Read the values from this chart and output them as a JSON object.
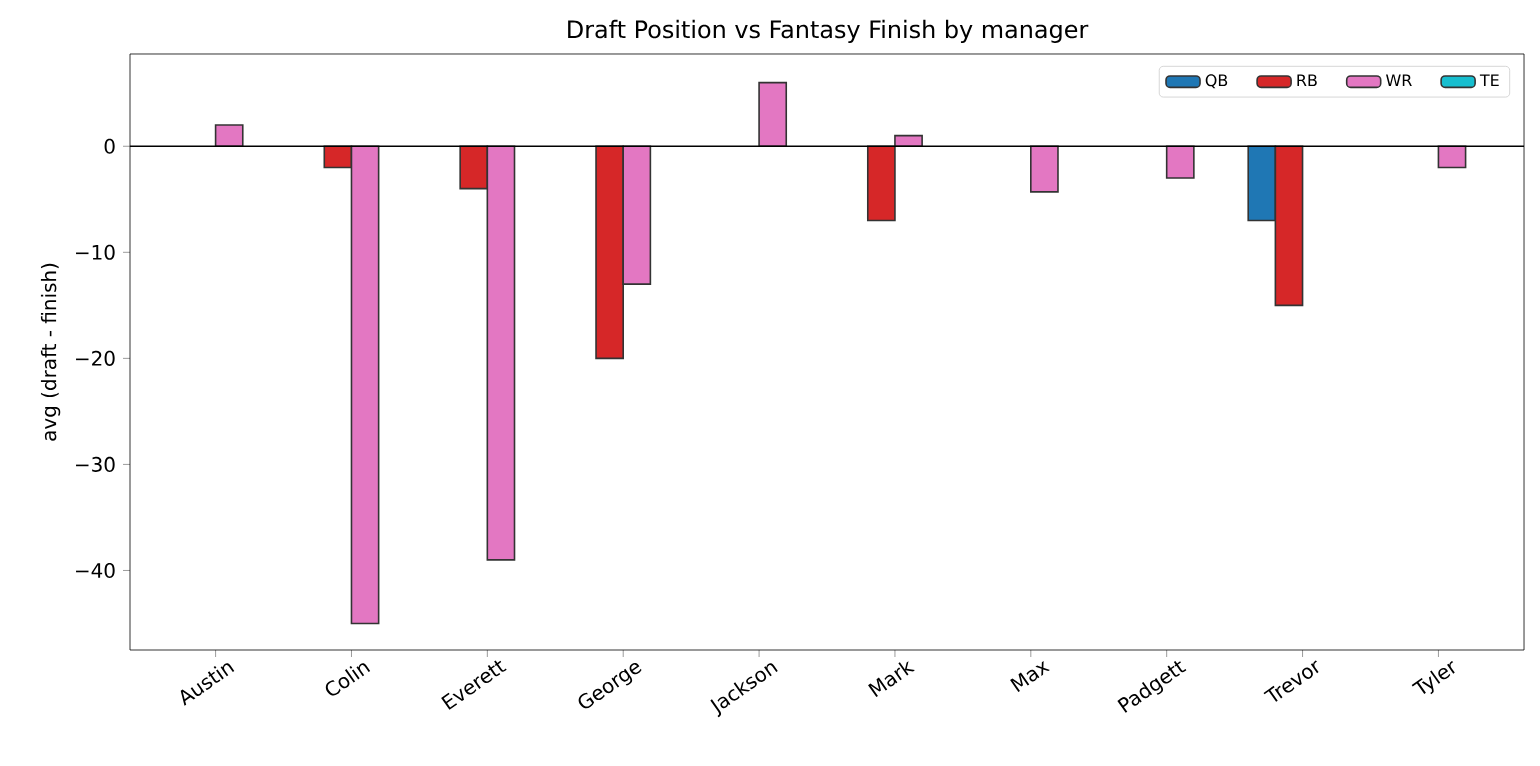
{
  "chart_data": {
    "type": "bar",
    "title": "Draft Position vs Fantasy Finish by manager",
    "ylabel": "avg (draft - finish)",
    "categories": [
      "Austin",
      "Colin",
      "Everett",
      "George",
      "Jackson",
      "Mark",
      "Max",
      "Padgett",
      "Trevor",
      "Tyler"
    ],
    "series": [
      {
        "name": "QB",
        "color": "#1f77b4",
        "values": [
          null,
          null,
          null,
          null,
          null,
          null,
          null,
          null,
          -7,
          null
        ]
      },
      {
        "name": "RB",
        "color": "#d62728",
        "values": [
          null,
          -2,
          -4,
          -20,
          null,
          -7,
          null,
          null,
          -15,
          null
        ]
      },
      {
        "name": "WR",
        "color": "#e377c2",
        "values": [
          2,
          -45,
          -39,
          -13,
          6,
          1,
          -4.3,
          -3,
          null,
          -2
        ]
      },
      {
        "name": "TE",
        "color": "#17becf",
        "values": [
          null,
          null,
          null,
          null,
          null,
          null,
          null,
          null,
          null,
          null
        ]
      }
    ],
    "ylim": [
      -47.5,
      8.7
    ],
    "yticks": [
      {
        "value": -40,
        "label": "−40"
      },
      {
        "value": -30,
        "label": "−30"
      },
      {
        "value": -20,
        "label": "−20"
      },
      {
        "value": -10,
        "label": "−10"
      },
      {
        "value": 0,
        "label": "0"
      }
    ],
    "ref_lines": [
      {
        "axis": "y",
        "value": 0,
        "color": "#000000"
      }
    ],
    "legend": "top right",
    "grid": false
  }
}
